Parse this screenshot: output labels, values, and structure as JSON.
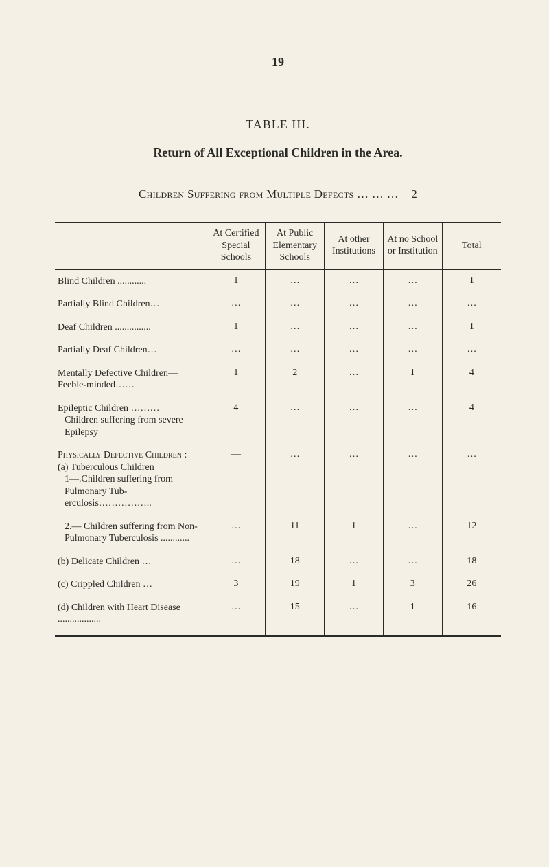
{
  "page_number": "19",
  "table_label": "TABLE III.",
  "caption": "Return of All Exceptional Children in the Area.",
  "subheading_prefix": "Children Suffering from Multiple Defects ",
  "subheading_dots": "… … …",
  "subheading_total": "2",
  "columns": {
    "c0": "",
    "c1": "At Certified Special Schools",
    "c2": "At Public Elemen­tary Schools",
    "c3": "At other Institu­tions",
    "c4": "At no School or Institu­tion",
    "c5": "Total"
  },
  "rows": [
    {
      "label_html": "Blind Children  ............",
      "v": [
        "1",
        "…",
        "…",
        "…",
        "1"
      ]
    },
    {
      "label_html": "Partially Blind Children…",
      "v": [
        "…",
        "…",
        "…",
        "…",
        "…"
      ]
    },
    {
      "label_html": "Deaf Children ...............",
      "v": [
        "1",
        "…",
        "…",
        "…",
        "1"
      ]
    },
    {
      "label_html": "Partially Deaf Children…",
      "v": [
        "…",
        "…",
        "…",
        "…",
        "…"
      ]
    },
    {
      "label_html": "Mentally Defective Chil­dren—Feeble-minded……",
      "v": [
        "1",
        "2",
        "…",
        "1",
        "4"
      ]
    },
    {
      "label_html": "Epileptic Children ………<br><span class=\"indent1\">Children suffering from severe Epilepsy</span>",
      "v": [
        "4",
        "…",
        "…",
        "…",
        "4"
      ]
    },
    {
      "label_html": "<span class=\"sc\">Physically Defective Children</span> :<br>(a) Tuberculous Children<br><span class=\"indent1\">1—.Children suffering from Pulmonary Tub­erculosis……………..</span>",
      "v": [
        "—",
        "…",
        "…",
        "…",
        "…"
      ]
    },
    {
      "label_html": "<span class=\"indent1\">2.— Children suffering from Non-Pulmonary Tuberculosis ............</span>",
      "v": [
        "…",
        "11",
        "1",
        "…",
        "12"
      ]
    },
    {
      "label_html": "(b) Delicate Children  …",
      "v": [
        "…",
        "18",
        "…",
        "…",
        "18"
      ]
    },
    {
      "label_html": "(c) Crippled Children  …",
      "v": [
        "3",
        "19",
        "1",
        "3",
        "26"
      ]
    },
    {
      "label_html": "(d) Children with Heart Disease  ..................",
      "v": [
        "…",
        "15",
        "…",
        "1",
        "16"
      ]
    }
  ]
}
